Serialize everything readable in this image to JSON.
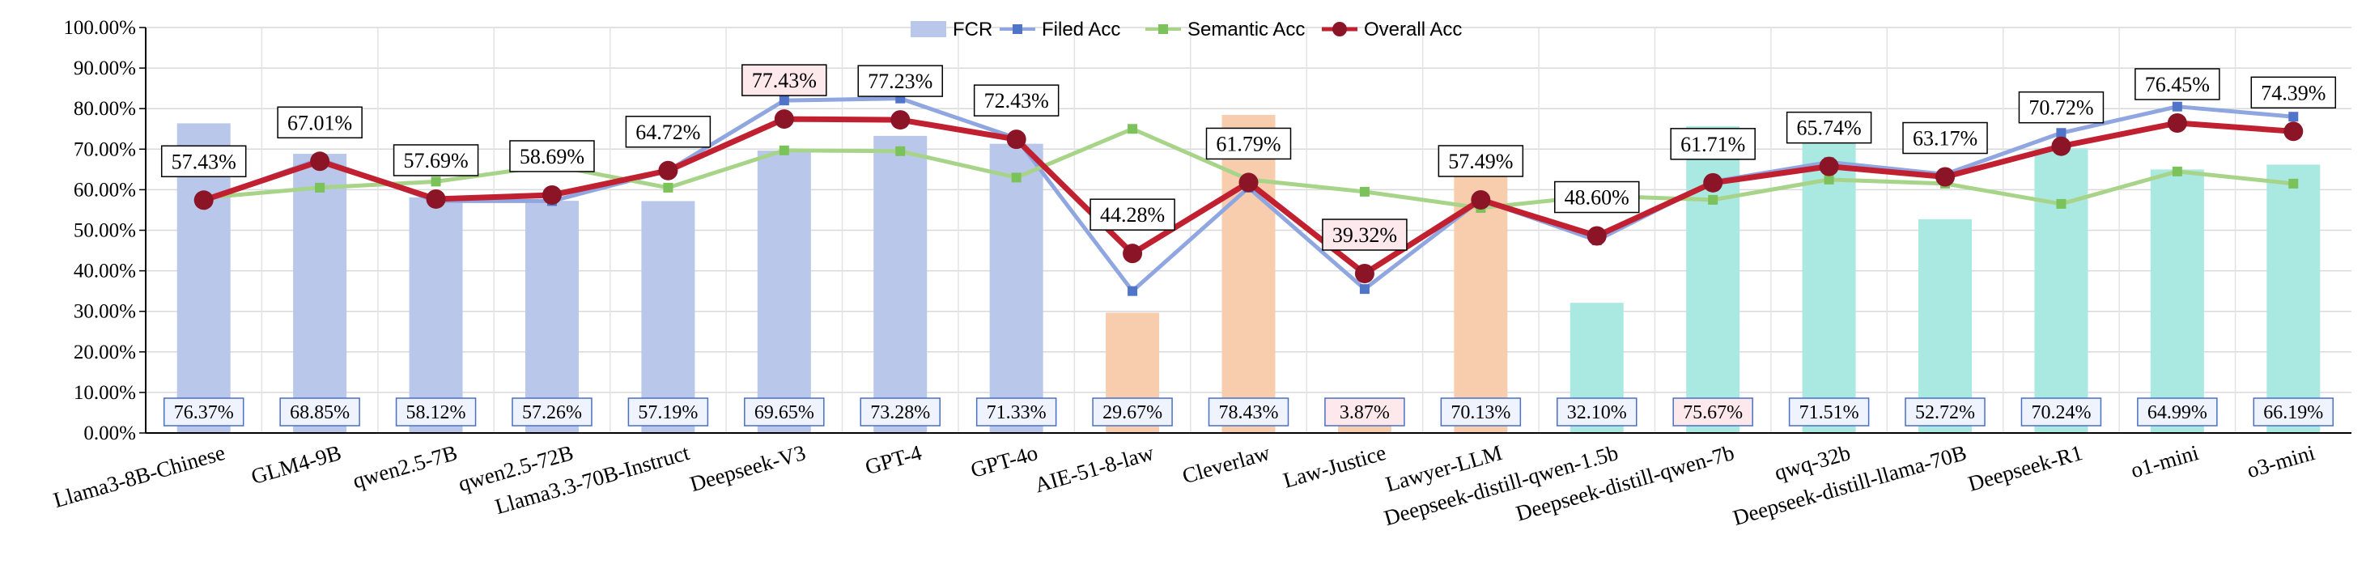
{
  "chart_data": {
    "type": "bar",
    "categories": [
      "Llama3-8B-Chinese",
      "GLM4-9B",
      "qwen2.5-7B",
      "qwen2.5-72B",
      "Llama3.3-70B-Instruct",
      "Deepseek-V3",
      "GPT-4",
      "GPT-4o",
      "AIE-51-8-law",
      "Cleverlaw",
      "Law-Justice",
      "Lawyer-LLM",
      "Deepseek-distill-qwen-1.5b",
      "Deepseek-distill-qwen-7b",
      "qwq-32b",
      "Deepseek-distill-llama-70B",
      "Deepseek-R1",
      "o1-mini",
      "o3-mini"
    ],
    "series": [
      {
        "name": "FCR",
        "type": "bar",
        "values": [
          76.37,
          68.85,
          58.12,
          57.26,
          57.19,
          69.65,
          73.28,
          71.33,
          29.67,
          78.43,
          3.87,
          70.13,
          32.1,
          75.67,
          71.51,
          52.72,
          70.24,
          64.99,
          66.19
        ],
        "labels": [
          "76.37%",
          "68.85%",
          "58.12%",
          "57.26%",
          "57.19%",
          "69.65%",
          "73.28%",
          "71.33%",
          "29.67%",
          "78.43%",
          "3.87%",
          "70.13%",
          "32.10%",
          "75.67%",
          "71.51%",
          "52.72%",
          "70.24%",
          "64.99%",
          "66.19%"
        ]
      },
      {
        "name": "Filed Acc",
        "type": "line",
        "values": [
          57.4,
          67.5,
          57.2,
          57.2,
          64.7,
          82.0,
          82.5,
          72.7,
          35.0,
          60.5,
          35.5,
          57.5,
          47.5,
          62.0,
          66.8,
          63.8,
          74.0,
          80.5,
          78.0
        ]
      },
      {
        "name": "Semantic Acc",
        "type": "line",
        "values": [
          58.0,
          60.5,
          62.0,
          66.0,
          60.5,
          69.7,
          69.5,
          63.0,
          75.0,
          62.5,
          59.5,
          55.5,
          58.5,
          57.5,
          62.5,
          61.5,
          56.5,
          64.5,
          61.5
        ]
      },
      {
        "name": "Overall Acc",
        "type": "line",
        "values": [
          57.43,
          67.01,
          57.69,
          58.69,
          64.72,
          77.43,
          77.23,
          72.43,
          44.28,
          61.79,
          39.32,
          57.49,
          48.6,
          61.71,
          65.74,
          63.17,
          70.72,
          76.45,
          74.39
        ],
        "labels": [
          "57.43%",
          "67.01%",
          "57.69%",
          "58.69%",
          "64.72%",
          "77.43%",
          "77.23%",
          "72.43%",
          "44.28%",
          "61.79%",
          "39.32%",
          "57.49%",
          "48.60%",
          "61.71%",
          "65.74%",
          "63.17%",
          "70.72%",
          "76.45%",
          "74.39%"
        ]
      }
    ],
    "y_ticks": [
      "0.00%",
      "10.00%",
      "20.00%",
      "30.00%",
      "40.00%",
      "50.00%",
      "60.00%",
      "70.00%",
      "80.00%",
      "90.00%",
      "100.00%"
    ],
    "ylim": [
      0,
      100
    ],
    "grid": true,
    "legend_position": "top-center",
    "colors": {
      "fcr_group1": "#b8c7ea",
      "fcr_group2": "#f8cdae",
      "fcr_group3": "#a9e9e1",
      "filed": "#8fa6e0",
      "filed_marker": "#4f74c8",
      "semantic": "#a8d48a",
      "semantic_marker": "#7cc25a",
      "overall": "#c0202f",
      "overall_marker": "#8b1426",
      "label_border": "#4a6fc4",
      "label_fill": "#eef3fd",
      "highlight_fill": "#fde8ec"
    },
    "bar_groups": [
      "g1",
      "g1",
      "g1",
      "g1",
      "g1",
      "g1",
      "g1",
      "g1",
      "g2",
      "g2",
      "g2",
      "g2",
      "g3",
      "g3",
      "g3",
      "g3",
      "g3",
      "g3",
      "g3"
    ],
    "fcr_label_highlight": [
      false,
      false,
      false,
      false,
      false,
      false,
      false,
      false,
      false,
      false,
      true,
      false,
      false,
      true,
      false,
      false,
      false,
      false,
      false
    ],
    "overall_label_highlight": [
      false,
      false,
      false,
      false,
      false,
      true,
      false,
      false,
      false,
      false,
      true,
      false,
      false,
      false,
      false,
      false,
      false,
      false,
      false
    ]
  }
}
